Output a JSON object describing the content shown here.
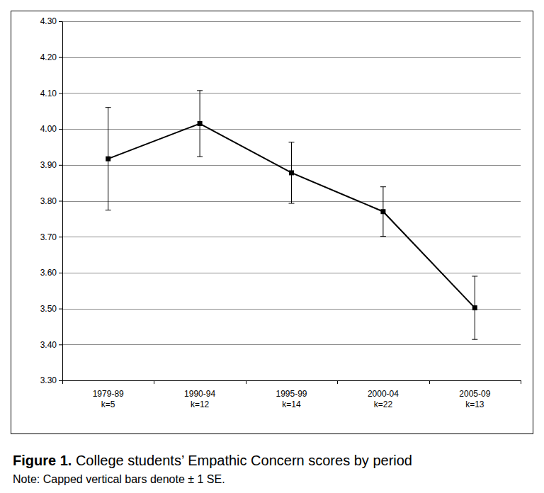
{
  "chart_data": {
    "type": "line",
    "title": "Figure 1. College students’ Empathic Concern scores by period",
    "annotations": [
      "Note: Capped vertical bars denote ± 1 SE."
    ],
    "categories": [
      "1979-89\nk=5",
      "1990-94\nk=12",
      "1995-99\nk=14",
      "2000-04\nk=22",
      "2005-09\nk=13"
    ],
    "values": [
      3.917,
      4.015,
      3.878,
      3.77,
      3.502
    ],
    "errors": [
      0.143,
      0.092,
      0.085,
      0.069,
      0.088
    ],
    "color": "#000000",
    "marker": "square",
    "ylim": [
      3.3,
      4.3
    ],
    "yticks": [
      {
        "value": 3.3,
        "label": "3.30"
      },
      {
        "value": 3.4,
        "label": "3.40"
      },
      {
        "value": 3.5,
        "label": "3.50"
      },
      {
        "value": 3.6,
        "label": "3.60"
      },
      {
        "value": 3.7,
        "label": "3.70"
      },
      {
        "value": 3.8,
        "label": "3.80"
      },
      {
        "value": 3.9,
        "label": "3.90"
      },
      {
        "value": 4.0,
        "label": "4.00"
      },
      {
        "value": 4.1,
        "label": "4.10"
      },
      {
        "value": 4.2,
        "label": "4.20"
      },
      {
        "value": 4.3,
        "label": "4.30"
      }
    ],
    "grid": true
  }
}
